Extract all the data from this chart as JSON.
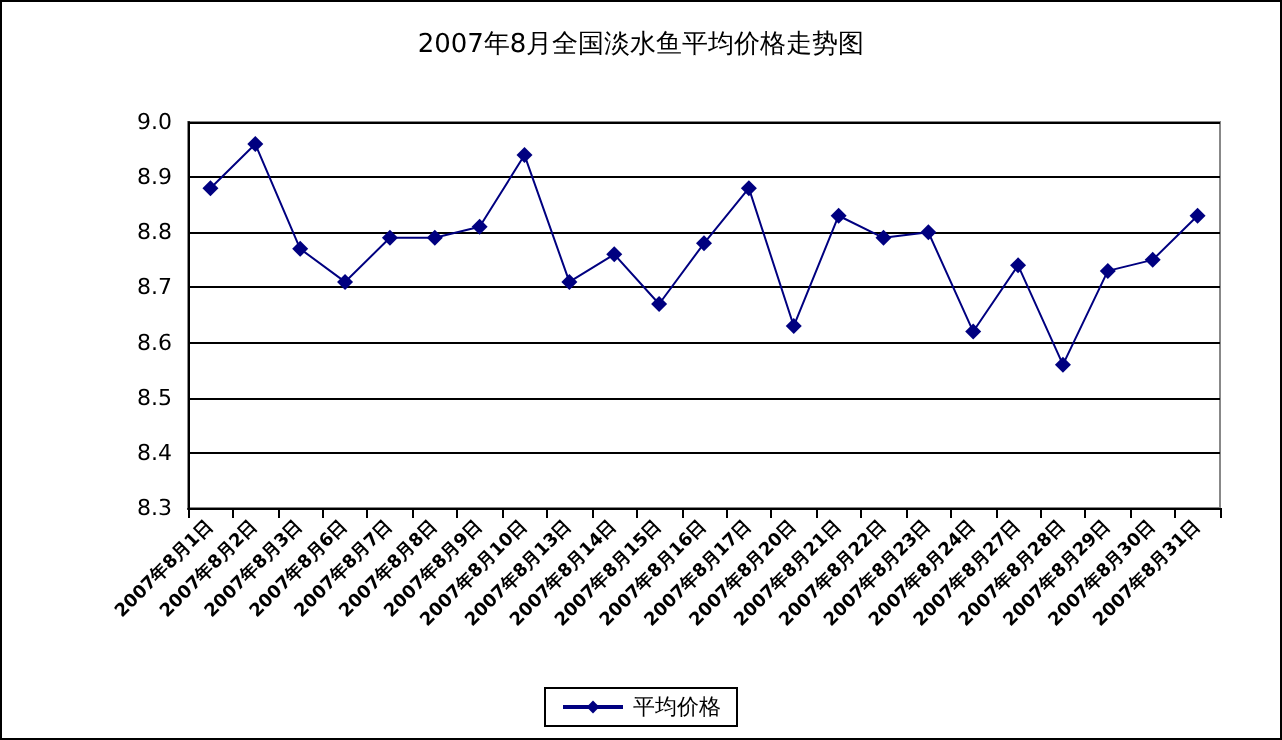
{
  "chart_data": {
    "type": "line",
    "title": "2007年8月全国淡水鱼平均价格走势图",
    "categories": [
      "2007年8月1日",
      "2007年8月2日",
      "2007年8月3日",
      "2007年8月6日",
      "2007年8月7日",
      "2007年8月8日",
      "2007年8月9日",
      "2007年8月10日",
      "2007年8月13日",
      "2007年8月14日",
      "2007年8月15日",
      "2007年8月16日",
      "2007年8月17日",
      "2007年8月20日",
      "2007年8月21日",
      "2007年8月22日",
      "2007年8月23日",
      "2007年8月24日",
      "2007年8月27日",
      "2007年8月28日",
      "2007年8月29日",
      "2007年8月30日",
      "2007年8月31日"
    ],
    "series": [
      {
        "name": "平均价格",
        "color": "#000080",
        "values": [
          8.88,
          8.96,
          8.77,
          8.71,
          8.79,
          8.79,
          8.81,
          8.94,
          8.71,
          8.76,
          8.67,
          8.78,
          8.88,
          8.63,
          8.83,
          8.79,
          8.8,
          8.62,
          8.74,
          8.56,
          8.73,
          8.75,
          8.83
        ]
      }
    ],
    "ylim": [
      8.3,
      9.0
    ],
    "yticks": [
      8.3,
      8.4,
      8.5,
      8.6,
      8.7,
      8.8,
      8.9,
      {
        "value": 9,
        "label": "9.0"
      }
    ],
    "grid": "y",
    "legend": "bottom",
    "marker": "diamond",
    "line_style": "solid"
  }
}
